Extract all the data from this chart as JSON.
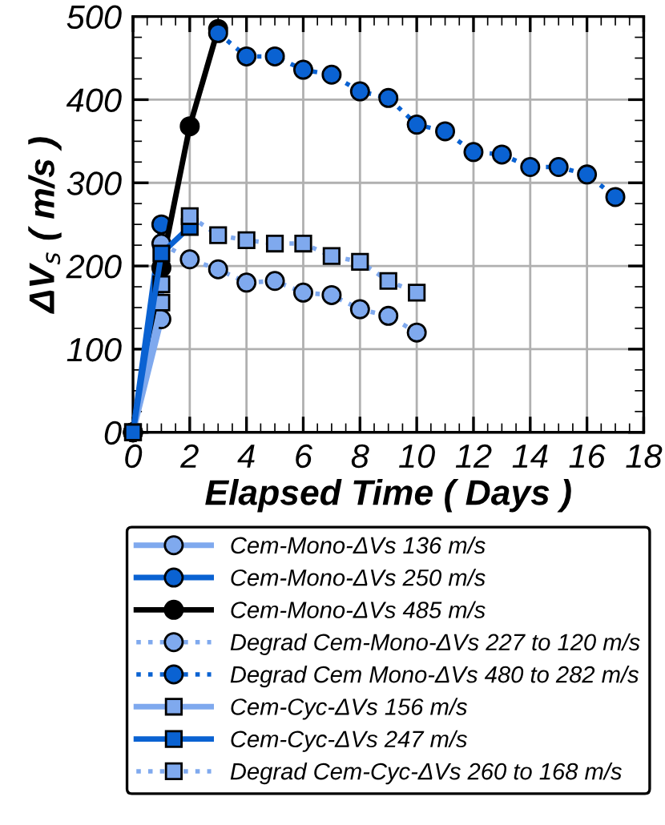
{
  "chart_data": {
    "type": "line",
    "xlabel": "Elapsed Time ( Days )",
    "ylabel": "ΔV$_{s}$ ( m/s )",
    "xlim": [
      0,
      18
    ],
    "ylim": [
      0,
      500
    ],
    "xticks": [
      0,
      2,
      4,
      6,
      8,
      10,
      12,
      14,
      16,
      18
    ],
    "yticks": [
      0,
      100,
      200,
      300,
      400,
      500
    ],
    "grid": true,
    "legend": "bottom",
    "series": [
      {
        "name": "Cem-Mono-ΔVs 136 m/s",
        "color": "#7fa9ee",
        "marker": "circle",
        "line_style": "solid",
        "x": [
          0,
          1
        ],
        "values": [
          0,
          136
        ]
      },
      {
        "name": "Cem-Mono-ΔVs 250 m/s",
        "color": "#0a62d2",
        "marker": "circle",
        "line_style": "solid",
        "x": [
          0,
          1
        ],
        "values": [
          0,
          250
        ]
      },
      {
        "name": "Cem-Mono-ΔVs 485 m/s",
        "color": "#000000",
        "marker": "circle",
        "line_style": "solid",
        "x": [
          0,
          1,
          2,
          3
        ],
        "values": [
          0,
          198,
          368,
          485
        ]
      },
      {
        "name": "Degrad Cem-Mono-ΔVs 227 to 120 m/s",
        "color": "#7fa9ee",
        "marker": "circle",
        "line_style": "dotted",
        "x": [
          1,
          2,
          3,
          4,
          5,
          6,
          7,
          8,
          9,
          10
        ],
        "values": [
          227,
          208,
          196,
          180,
          182,
          168,
          165,
          148,
          140,
          120
        ]
      },
      {
        "name": "Degrad Cem Mono-ΔVs 480 to 282 m/s",
        "color": "#0a62d2",
        "marker": "circle",
        "line_style": "dotted",
        "x": [
          3,
          4,
          5,
          6,
          7,
          8,
          9,
          10,
          11,
          12,
          13,
          14,
          15,
          16,
          17
        ],
        "values": [
          480,
          452,
          452,
          436,
          430,
          410,
          402,
          370,
          362,
          337,
          334,
          319,
          319,
          310,
          283
        ]
      },
      {
        "name": "Cem-Cyc-ΔVs 156 m/s",
        "color": "#7fa9ee",
        "marker": "square",
        "line_style": "solid",
        "x": [
          0,
          1,
          1
        ],
        "values": [
          0,
          156,
          178
        ]
      },
      {
        "name": "Cem-Cyc-ΔVs 247 m/s",
        "color": "#0a62d2",
        "marker": "square",
        "line_style": "solid",
        "x": [
          0,
          1,
          2
        ],
        "values": [
          0,
          215,
          247
        ]
      },
      {
        "name": "Degrad Cem-Cyc-ΔVs 260 to 168 m/s",
        "color": "#7fa9ee",
        "marker": "square",
        "line_style": "dotted",
        "x": [
          2,
          3,
          4,
          5,
          6,
          7,
          8,
          9,
          10
        ],
        "values": [
          260,
          237,
          231,
          227,
          227,
          212,
          205,
          182,
          168
        ]
      }
    ]
  }
}
